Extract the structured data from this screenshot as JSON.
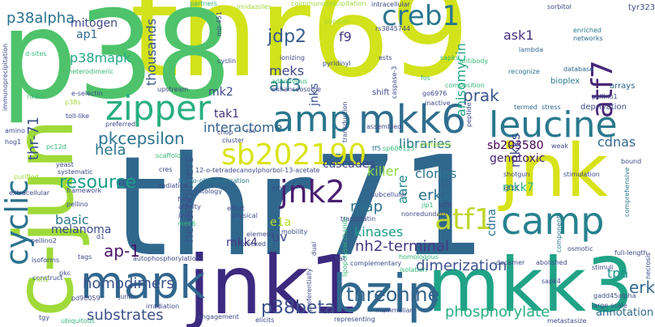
{
  "title": "",
  "words": [
    {
      "text": "thr71",
      "color": "#30678d"
    },
    {
      "text": "thr69",
      "color": "#d2e21b"
    },
    {
      "text": "p38",
      "color": "#4ec36b"
    },
    {
      "text": "c-jun",
      "color": "#a0da39"
    },
    {
      "text": "mkk3",
      "color": "#20a386"
    },
    {
      "text": "jnk1",
      "color": "#3b2a7e"
    },
    {
      "text": "jnk",
      "color": "#d8e219"
    },
    {
      "text": "mapk",
      "color": "#31668e"
    },
    {
      "text": "bzip",
      "color": "#30698e"
    },
    {
      "text": "mkk6",
      "color": "#2e6e8e"
    },
    {
      "text": "leucine",
      "color": "#2a788e"
    },
    {
      "text": "amp",
      "color": "#2a768e"
    },
    {
      "text": "zipper",
      "color": "#29af7f"
    },
    {
      "text": "camp",
      "color": "#26828e"
    },
    {
      "text": "atf7",
      "color": "#482677"
    },
    {
      "text": "sb202190",
      "color": "#dae319"
    },
    {
      "text": "creb1",
      "color": "#2a788e"
    },
    {
      "text": "jnk2",
      "color": "#481f70"
    },
    {
      "text": "atf1",
      "color": "#bfd72f"
    },
    {
      "text": "cyclic",
      "color": "#2c738e"
    },
    {
      "text": "p38beta",
      "color": "#3c508b"
    },
    {
      "text": "threonine",
      "color": "#33628d"
    },
    {
      "text": "p38alpha",
      "color": "#2c738e"
    },
    {
      "text": "mitogen",
      "color": "#3e4989"
    },
    {
      "text": "ap1",
      "color": "#31688e"
    },
    {
      "text": "p38mapk",
      "color": "#23a983"
    },
    {
      "text": "thousands",
      "color": "#39568c"
    },
    {
      "text": "jdp2",
      "color": "#375a8c"
    },
    {
      "text": "f9",
      "color": "#443a83"
    },
    {
      "text": "meks",
      "color": "#404688"
    },
    {
      "text": "atf3",
      "color": "#2d718e"
    },
    {
      "text": "jnks",
      "color": "#3b528b"
    },
    {
      "text": "mk2",
      "color": "#3e4989"
    },
    {
      "text": "tak1",
      "color": "#46327e"
    },
    {
      "text": "pkcepsilon",
      "color": "#2c738e"
    },
    {
      "text": "hela",
      "color": "#2a778e"
    },
    {
      "text": "resource",
      "color": "#1f9e89"
    },
    {
      "text": "thr-71",
      "color": "#3b528b"
    },
    {
      "text": "heterodimers",
      "color": "#39568c"
    },
    {
      "text": "interactome",
      "color": "#33628d"
    },
    {
      "text": "basic",
      "color": "#29798e"
    },
    {
      "text": "melanoma",
      "color": "#3d4d8a"
    },
    {
      "text": "ap-1",
      "color": "#481467"
    },
    {
      "text": "homodimers",
      "color": "#3b528b"
    },
    {
      "text": "substrates",
      "color": "#3c4f8a"
    },
    {
      "text": "mkk4",
      "color": "#443983"
    },
    {
      "text": "uv",
      "color": "#3e4989"
    },
    {
      "text": "e1a",
      "color": "#b5de2b"
    },
    {
      "text": "map",
      "color": "#2d718e"
    },
    {
      "text": "erk2",
      "color": "#2d708e"
    },
    {
      "text": "kinases",
      "color": "#1e9d89"
    },
    {
      "text": "nh2-terminal",
      "color": "#453882"
    },
    {
      "text": "dimerization",
      "color": "#3b528b"
    },
    {
      "text": "cascades",
      "color": "#414487"
    },
    {
      "text": "clones",
      "color": "#2c738e"
    },
    {
      "text": "libraries",
      "color": "#2a788e"
    },
    {
      "text": "killer",
      "color": "#8bd646"
    },
    {
      "text": "aare",
      "color": "#23888e"
    },
    {
      "text": "prak",
      "color": "#39568c"
    },
    {
      "text": "anisomycin",
      "color": "#22a785"
    },
    {
      "text": "mkks",
      "color": "#3e4989"
    },
    {
      "text": "ask1",
      "color": "#472f7d"
    },
    {
      "text": "sb203580",
      "color": "#440154"
    },
    {
      "text": "genotoxic",
      "color": "#482475"
    },
    {
      "text": "cdnas",
      "color": "#31688e"
    },
    {
      "text": "mkk7",
      "color": "#2db27d"
    },
    {
      "text": "cdna",
      "color": "#2c738e"
    },
    {
      "text": "tpa",
      "color": "#21918c"
    },
    {
      "text": "erk",
      "color": "#31688e"
    },
    {
      "text": "annotation",
      "color": "#2f6b8e"
    },
    {
      "text": "phosphorylate",
      "color": "#29af7f"
    },
    {
      "text": "tyr323",
      "color": "#3e4989"
    },
    {
      "text": "enriched",
      "color": "#2a788e"
    },
    {
      "text": "networks",
      "color": "#31688e"
    },
    {
      "text": "database",
      "color": "#31688e"
    },
    {
      "text": "bioplex",
      "color": "#2a788e"
    },
    {
      "text": "arrays",
      "color": "#31688e"
    },
    {
      "text": "pellino1",
      "color": "#3e4989"
    },
    {
      "text": "deprivation",
      "color": "#3e4989"
    },
    {
      "text": "termed",
      "color": "#31688e"
    },
    {
      "text": "stress",
      "color": "#31688e"
    },
    {
      "text": "recognize",
      "color": "#2a788e"
    },
    {
      "text": "lambda",
      "color": "#31688e"
    },
    {
      "text": "sorbitol",
      "color": "#3e4989"
    },
    {
      "text": "intracellular",
      "color": "#3e4989"
    },
    {
      "text": "rs3845744",
      "color": "#3e4989"
    },
    {
      "text": "partners",
      "color": "#35b779"
    },
    {
      "text": "imidazoles",
      "color": "#a0da39"
    },
    {
      "text": "coimmunoprecipitation",
      "color": "#a0da39"
    },
    {
      "text": "phorbol",
      "color": "#a0da39"
    },
    {
      "text": "ests",
      "color": "#3e4989"
    },
    {
      "text": "sapks",
      "color": "#35b779"
    },
    {
      "text": "antibody",
      "color": "#35b779"
    },
    {
      "text": "fos",
      "color": "#35b779"
    },
    {
      "text": "composition",
      "color": "#35b779"
    },
    {
      "text": "go6976",
      "color": "#3e4989"
    },
    {
      "text": "shift",
      "color": "#3e4989"
    },
    {
      "text": "inactive",
      "color": "#3e4989"
    },
    {
      "text": "caspase-3",
      "color": "#3e4989"
    },
    {
      "text": "peptide",
      "color": "#3e4989"
    },
    {
      "text": "pyridinyl",
      "color": "#3e4989"
    },
    {
      "text": "ionizing",
      "color": "#3e4989"
    },
    {
      "text": "adenovirus",
      "color": "#35b779"
    },
    {
      "text": "enhanceosome",
      "color": "#3e4989"
    },
    {
      "text": "cyclin",
      "color": "#3e4989"
    },
    {
      "text": "mir-451",
      "color": "#3e4989"
    },
    {
      "text": "stimulation",
      "color": "#3e4989"
    },
    {
      "text": "shotgun",
      "color": "#3e4989"
    },
    {
      "text": "gt11",
      "color": "#3e4989"
    },
    {
      "text": "weak",
      "color": "#3e4989"
    },
    {
      "text": "bound",
      "color": "#3e4989"
    },
    {
      "text": "comprehensive",
      "color": "#2a788e"
    },
    {
      "text": "full-length",
      "color": "#3e4989"
    },
    {
      "text": "necrosis",
      "color": "#3e4989"
    },
    {
      "text": "stimuli",
      "color": "#3e4989"
    },
    {
      "text": "gadd45alpha",
      "color": "#3e4989"
    },
    {
      "text": "large-scale",
      "color": "#3e4989"
    },
    {
      "text": "metastasize",
      "color": "#3e4989"
    },
    {
      "text": "sapk4",
      "color": "#3e4989"
    },
    {
      "text": "abolished",
      "color": "#3e4989"
    },
    {
      "text": "decamer",
      "color": "#3e4989"
    },
    {
      "text": "osmotic",
      "color": "#3e4989"
    },
    {
      "text": "components",
      "color": "#2a788e"
    },
    {
      "text": "lipopolysaccharide",
      "color": "#35b779"
    },
    {
      "text": "subcellular",
      "color": "#3e4989"
    },
    {
      "text": "proteome",
      "color": "#a0da39"
    },
    {
      "text": "sp600125",
      "color": "#35b779"
    },
    {
      "text": "tf5",
      "color": "#2a788e"
    },
    {
      "text": "transduction",
      "color": "#3e4989"
    },
    {
      "text": "assembled",
      "color": "#3e4989"
    },
    {
      "text": "cluster",
      "color": "#3e4989"
    },
    {
      "text": "chop",
      "color": "#3e4989"
    },
    {
      "text": "ras",
      "color": "#3e4989"
    },
    {
      "text": "12-o-tetradecanoylphorbol-13-acetate",
      "color": "#3e4989"
    },
    {
      "text": "homo-oligomerization",
      "color": "#2a788e"
    },
    {
      "text": "ontology",
      "color": "#3e4989"
    },
    {
      "text": "fmlp",
      "color": "#3e4989"
    },
    {
      "text": "affinity",
      "color": "#3e4989"
    },
    {
      "text": "jund",
      "color": "#3e4989"
    },
    {
      "text": "effort",
      "color": "#3e4989"
    },
    {
      "text": "physical",
      "color": "#3e4989"
    },
    {
      "text": "motif",
      "color": "#3e4989"
    },
    {
      "text": "jip1",
      "color": "#35b779"
    },
    {
      "text": "atf4",
      "color": "#3e4989"
    },
    {
      "text": "nonredundant",
      "color": "#3e4989"
    },
    {
      "text": "transplatin",
      "color": "#3e4989"
    },
    {
      "text": "mobility",
      "color": "#3e4989"
    },
    {
      "text": "element",
      "color": "#3e4989"
    },
    {
      "text": "blocked",
      "color": "#3e4989"
    },
    {
      "text": "dual",
      "color": "#3e4989"
    },
    {
      "text": "preferentially",
      "color": "#3e4989"
    },
    {
      "text": "elicits",
      "color": "#3e4989"
    },
    {
      "text": "representing",
      "color": "#3e4989"
    },
    {
      "text": "mammalian",
      "color": "#3e4989"
    },
    {
      "text": "complementary",
      "color": "#3e4989"
    },
    {
      "text": "homologous",
      "color": "#35b779"
    },
    {
      "text": "isolation",
      "color": "#35b779"
    },
    {
      "text": "hat",
      "color": "#3e4989"
    },
    {
      "text": "engagement",
      "color": "#3e4989"
    },
    {
      "text": "irradiation",
      "color": "#3e4989"
    },
    {
      "text": "autophosphorylation",
      "color": "#3e4989"
    },
    {
      "text": "mek6",
      "color": "#35b779"
    },
    {
      "text": "radiation",
      "color": "#3e4989"
    },
    {
      "text": "tags",
      "color": "#3e4989"
    },
    {
      "text": "d1",
      "color": "#3e4989"
    },
    {
      "text": "pd98059",
      "color": "#3e4989"
    },
    {
      "text": "ubiquitous",
      "color": "#35b779"
    },
    {
      "text": "tgy",
      "color": "#3e4989"
    },
    {
      "text": "pkc",
      "color": "#3e4989"
    },
    {
      "text": "construct",
      "color": "#3e4989"
    },
    {
      "text": "isoforms",
      "color": "#3e4989"
    },
    {
      "text": "pellino2",
      "color": "#3e4989"
    },
    {
      "text": "pellino",
      "color": "#3e4989"
    },
    {
      "text": "extracellular",
      "color": "#3e4989"
    },
    {
      "text": "purified",
      "color": "#a0da39"
    },
    {
      "text": "yeast",
      "color": "#3e4989"
    },
    {
      "text": "systematic",
      "color": "#3e4989"
    },
    {
      "text": "framework",
      "color": "#3e4989"
    },
    {
      "text": "cres",
      "color": "#3e4989"
    },
    {
      "text": "scaffold",
      "color": "#35b779"
    },
    {
      "text": "pc12d",
      "color": "#35b779"
    },
    {
      "text": "hog1",
      "color": "#3e4989"
    },
    {
      "text": "amino",
      "color": "#3e4989"
    },
    {
      "text": "preferred",
      "color": "#3e4989"
    },
    {
      "text": "toll-like",
      "color": "#3e4989"
    },
    {
      "text": "e-selectin",
      "color": "#3e4989"
    },
    {
      "text": "upstream",
      "color": "#3e4989"
    },
    {
      "text": "riken",
      "color": "#35b779"
    },
    {
      "text": "p38s",
      "color": "#a0da39"
    },
    {
      "text": "heterodimeric",
      "color": "#35b779"
    },
    {
      "text": "immunoprecipitation",
      "color": "#3e4989"
    },
    {
      "text": "d-sites",
      "color": "#35b779"
    },
    {
      "text": "atf2",
      "color": "#a0da39"
    },
    {
      "text": "junb",
      "color": "#3e4989"
    }
  ]
}
